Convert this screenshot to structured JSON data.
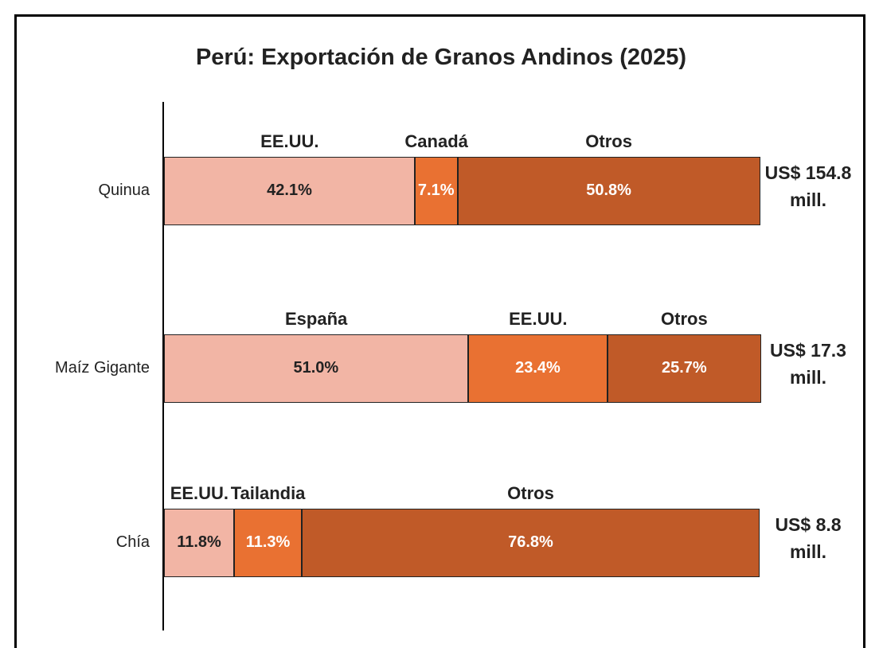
{
  "chart_data": {
    "type": "stacked_bar_horizontal",
    "title": "Perú: Exportación de Granos Andinos (2025)",
    "xlim": [
      0,
      100
    ],
    "rows": [
      {
        "category": "Quinua",
        "total_label": "US$ 154.8 mill.",
        "segments": [
          {
            "name": "EE.UU.",
            "value": 42.1,
            "value_label": "42.1%",
            "color": "#f2b5a5",
            "label_color": "#222222"
          },
          {
            "name": "Canadá",
            "value": 7.1,
            "value_label": "7.1%",
            "color": "#e97132",
            "label_color": "#ffffff"
          },
          {
            "name": "Otros",
            "value": 50.8,
            "value_label": "50.8%",
            "color": "#c05a28",
            "label_color": "#ffffff"
          }
        ]
      },
      {
        "category": "Maíz Gigante",
        "total_label": "US$ 17.3 mill.",
        "segments": [
          {
            "name": "España",
            "value": 51.0,
            "value_label": "51.0%",
            "color": "#f2b5a5",
            "label_color": "#222222"
          },
          {
            "name": "EE.UU.",
            "value": 23.4,
            "value_label": "23.4%",
            "color": "#e97132",
            "label_color": "#ffffff"
          },
          {
            "name": "Otros",
            "value": 25.7,
            "value_label": "25.7%",
            "color": "#c05a28",
            "label_color": "#ffffff"
          }
        ]
      },
      {
        "category": "Chía",
        "total_label": "US$ 8.8 mill.",
        "segments": [
          {
            "name": "EE.UU.",
            "value": 11.8,
            "value_label": "11.8%",
            "color": "#f2b5a5",
            "label_color": "#222222"
          },
          {
            "name": "Tailandia",
            "value": 11.3,
            "value_label": "11.3%",
            "color": "#e97132",
            "label_color": "#ffffff"
          },
          {
            "name": "Otros",
            "value": 76.8,
            "value_label": "76.8%",
            "color": "#c05a28",
            "label_color": "#ffffff"
          }
        ]
      }
    ]
  }
}
